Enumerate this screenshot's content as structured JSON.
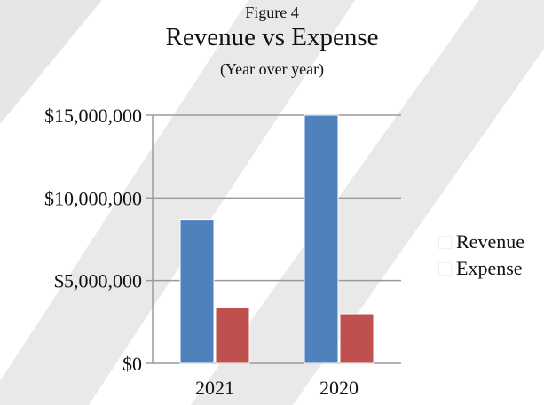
{
  "header": {
    "figure_label": "Figure 4",
    "title": "Revenue vs Expense",
    "subtitle": "(Year over year)"
  },
  "chart_data": {
    "type": "bar",
    "title": "Revenue vs Expense",
    "subtitle": "(Year over year)",
    "categories": [
      "2021",
      "2020"
    ],
    "series": [
      {
        "name": "Revenue",
        "values": [
          8700000,
          15000000
        ],
        "color": "#4F81BD"
      },
      {
        "name": "Expense",
        "values": [
          3400000,
          3000000
        ],
        "color": "#C0504D"
      }
    ],
    "xlabel": "",
    "ylabel": "",
    "ylim": [
      0,
      15000000
    ],
    "yticks": [
      0,
      5000000,
      10000000,
      15000000
    ],
    "ytick_labels": [
      "$0",
      "$5,000,000",
      "$10,000,000",
      "$15,000,000"
    ],
    "grid": true,
    "legend_position": "right"
  }
}
